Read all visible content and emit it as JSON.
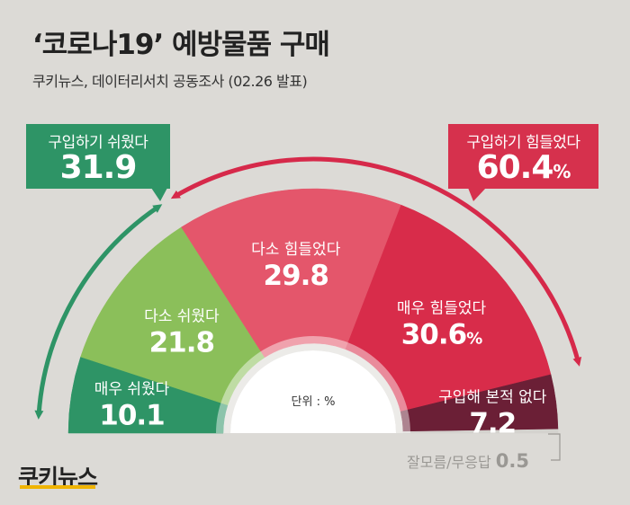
{
  "title": "‘코로나19’ 예방물품 구매",
  "subtitle": "쿠키뉴스, 데이터리서치 공동조사 (02.26 발표)",
  "unit_label": "단위 : %",
  "logo_text": "쿠키뉴스",
  "summary": {
    "easy": {
      "label": "구입하기 쉬웠다",
      "value": "31.9",
      "unit": ""
    },
    "hard": {
      "label": "구입하기 힘들었다",
      "value": "60.4",
      "unit": "%"
    }
  },
  "colors": {
    "very_easy": "#2e9466",
    "somewhat_easy": "#8bbf5a",
    "somewhat_hard": "#e4566b",
    "very_hard": "#d82c4a",
    "never_bought": "#6b1f36",
    "no_response": "#d4d2ce",
    "easy_arrow": "#2e9466",
    "hard_arrow": "#d6294a"
  },
  "chart_data": {
    "type": "pie",
    "subtype": "semi-donut",
    "unit": "%",
    "categories": [
      "매우 쉬웠다",
      "다소 쉬웠다",
      "다소 힘들었다",
      "매우 힘들었다",
      "구입해 본적 없다",
      "잘모름/무응답"
    ],
    "values": [
      10.1,
      21.8,
      29.8,
      30.6,
      7.2,
      0.5
    ],
    "value_labels": [
      "10.1",
      "21.8",
      "29.8",
      "30.6",
      "7.2",
      "0.5"
    ],
    "value_units": [
      "",
      "",
      "",
      "%",
      "",
      ""
    ]
  }
}
